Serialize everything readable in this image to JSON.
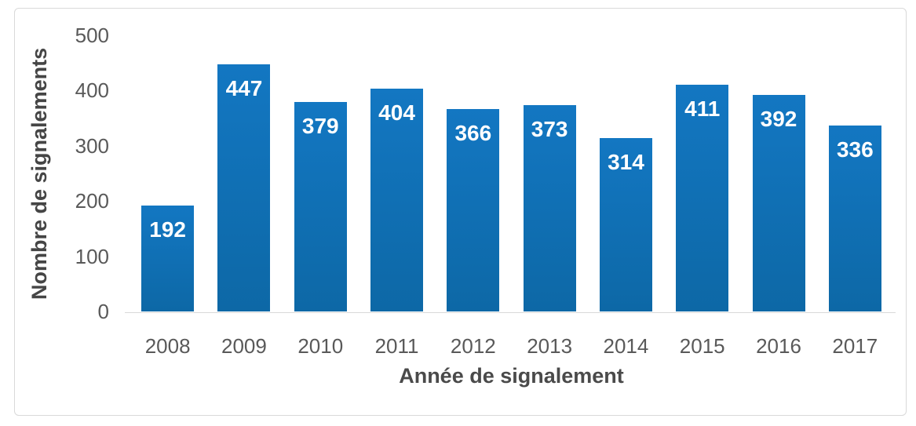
{
  "chart_data": {
    "type": "bar",
    "categories": [
      "2008",
      "2009",
      "2010",
      "2011",
      "2012",
      "2013",
      "2014",
      "2015",
      "2016",
      "2017"
    ],
    "values": [
      192,
      447,
      379,
      404,
      366,
      373,
      314,
      411,
      392,
      336
    ],
    "title": "",
    "xlabel": "Année de signalement",
    "ylabel": "Nombre de signalements",
    "ylim": [
      0,
      500
    ],
    "yticks": [
      0,
      100,
      200,
      300,
      400,
      500
    ],
    "grid": false,
    "legend": false,
    "colors": {
      "bar_top": "#1377c2",
      "bar_bottom": "#0d68a6",
      "bar_value_label": "#ffffff",
      "tick_label": "#595959",
      "axis_title": "#4a4a4a",
      "frame_border": "#d9d9d9",
      "baseline": "#d9d9d9",
      "background": "#ffffff"
    }
  }
}
